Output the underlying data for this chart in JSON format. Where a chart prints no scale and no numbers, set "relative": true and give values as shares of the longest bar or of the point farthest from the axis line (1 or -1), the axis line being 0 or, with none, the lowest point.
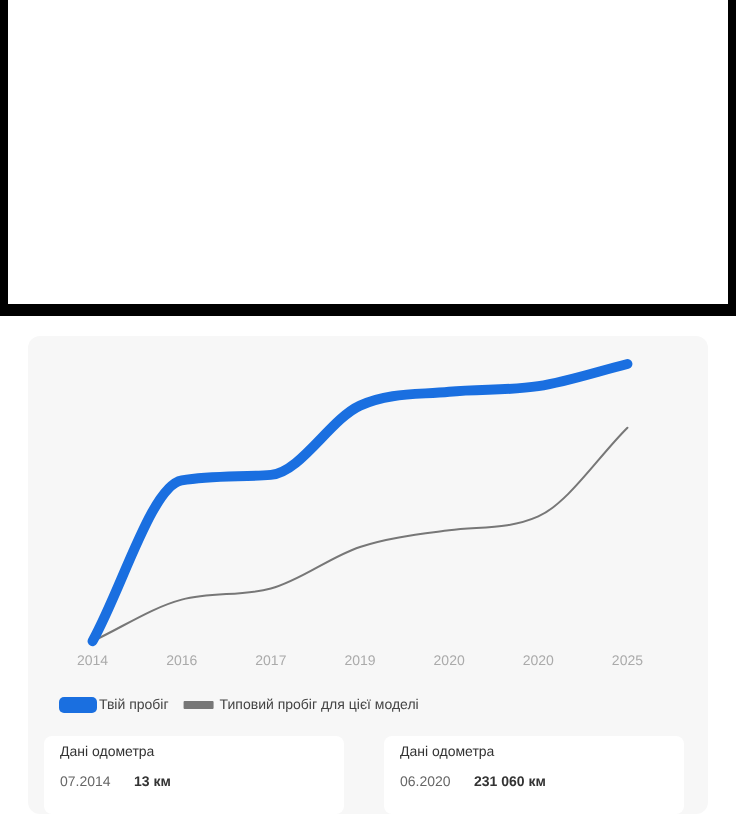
{
  "chart_data": {
    "type": "line",
    "relative": true,
    "categories": [
      "2014",
      "2016",
      "2017",
      "2019",
      "2020",
      "2020",
      "2025"
    ],
    "series": [
      {
        "name": "Твій пробіг",
        "color": "#1a6fe0",
        "values": [
          0,
          0.58,
          0.6,
          0.85,
          0.9,
          0.92,
          1
        ]
      },
      {
        "name": "Типовий пробіг для цієї моделі",
        "color": "#777777",
        "values": [
          0,
          0.15,
          0.19,
          0.34,
          0.4,
          0.45,
          0.77
        ]
      }
    ],
    "legend": "bottom left",
    "grid": false,
    "marker": "none",
    "line_style": "solid",
    "annotations": [
      "Дані одометра",
      "07.2014",
      "13 км",
      "Дані одометра",
      "06.2020",
      "231 060 км"
    ]
  }
}
